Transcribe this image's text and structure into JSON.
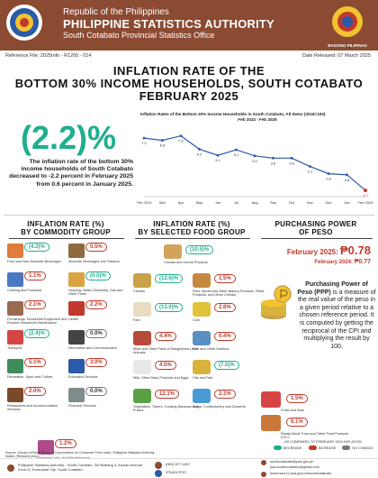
{
  "header": {
    "republic": "Republic of the Philippines",
    "agency": "PHILIPPINE STATISTICS AUTHORITY",
    "office": "South Cotabato Provincial Statistics Office",
    "bp_logo_text": "BAGONG PILIPINAS"
  },
  "reference": {
    "ref": "Reference File: 2025Info - R1265 - 014",
    "released": "Date Released:   07 March 2025"
  },
  "title": {
    "line1": "INFLATION RATE OF THE",
    "line2": "BOTTOM 30% INCOME HOUSEHOLDS, SOUTH COTABATO",
    "line3": "FEBRUARY 2025"
  },
  "headline": {
    "value": "(2.2)%",
    "description": "The inflation rate of the bottom 30% income households of South Cotabato decreased to -2.2 percent in February 2025 from 0.6 percent in January 2025."
  },
  "chart_data": {
    "type": "line",
    "title": "Inflation Rates of the Bottom 30% Income Households in South Cotabato, All Items (2018=100)",
    "subtitle": "Feb 2024 - Feb 2025",
    "categories": [
      "Feb 2024",
      "Mar",
      "Apr",
      "May",
      "Jun",
      "Jul",
      "Aug",
      "Sep",
      "Oct",
      "Nov",
      "Dec",
      "Jan",
      "Feb 2025"
    ],
    "x_tick_labels": [
      "Feb 2024",
      "Mar",
      "Apr",
      "May",
      "Jun",
      "Jul",
      "Aug",
      "Sep",
      "Oct",
      "Nov",
      "Dec",
      "Jan",
      "Feb 2025"
    ],
    "values": [
      7.2,
      6.8,
      7.6,
      5.2,
      4.1,
      5.1,
      4.0,
      3.6,
      3.6,
      2.1,
      0.8,
      0.6,
      -2.2
    ],
    "value_labels": [
      "7.2",
      "6.8",
      "7.6",
      "5.2",
      "4.1",
      "5.1",
      "4.0",
      "3.6",
      "3.6",
      "2.1",
      "0.8",
      "0.6",
      "-2.2"
    ],
    "ylim": [
      -3,
      9
    ],
    "line_color": "#2a5aa8",
    "highlight_color": "#c0392b"
  },
  "commodity": {
    "title_line1": "INFLATION RATE (%)",
    "title_line2": "BY COMMODITY GROUP",
    "items": [
      {
        "value": "(4.3)%",
        "label": "Food and Non-Alcoholic Beverages",
        "trend": "dec",
        "icon": "food-icon",
        "color": "#e07b39"
      },
      {
        "value": "0.5%",
        "label": "Alcoholic Beverages and Tobacco",
        "trend": "inc",
        "icon": "bottle-icon",
        "color": "#8e6b3e"
      },
      {
        "value": "1.1%",
        "label": "Clothing and Footwear",
        "trend": "inc",
        "icon": "shirt-icon",
        "color": "#4a78c2"
      },
      {
        "value": "(0.5)%",
        "label": "Housing, Water, Electricity, Gas and Other Fuels",
        "trend": "dec",
        "icon": "house-icon",
        "color": "#d9a441"
      },
      {
        "value": "2.1%",
        "label": "Furnishings, Household Equipment and Routine Household Maintenance",
        "trend": "inc",
        "icon": "sofa-icon",
        "color": "#9a6a4f"
      },
      {
        "value": "2.2%",
        "label": "Health",
        "trend": "inc",
        "icon": "health-icon",
        "color": "#c0392b"
      },
      {
        "value": "(2.4)%",
        "label": "Transport",
        "trend": "dec",
        "icon": "car-icon",
        "color": "#d64545"
      },
      {
        "value": "0.0%",
        "label": "Information and Communication",
        "trend": "nc",
        "icon": "phone-icon",
        "color": "#444444"
      },
      {
        "value": "5.1%",
        "label": "Recreation, Sport and Culture",
        "trend": "inc",
        "icon": "sport-icon",
        "color": "#3d8d5a"
      },
      {
        "value": "3.0%",
        "label": "Education Services",
        "trend": "inc",
        "icon": "education-icon",
        "color": "#2a5aa8"
      },
      {
        "value": "2.0%",
        "label": "Restaurants and Accommodation Services",
        "trend": "inc",
        "icon": "restaurant-icon",
        "color": "#7a4a2b"
      },
      {
        "value": "0.0%",
        "label": "Financial Services",
        "trend": "nc",
        "icon": "bank-icon",
        "color": "#7f8c8d"
      },
      {
        "value": "1.2%",
        "label": "Personal Care, and Miscellaneous Goods and Services",
        "trend": "inc",
        "icon": "salon-icon",
        "color": "#b04a8a"
      }
    ]
  },
  "food": {
    "title_line1": "INFLATION RATE (%)",
    "title_line2": "BY SELECTED FOOD GROUP",
    "items": [
      {
        "value": "(10.5)%",
        "label": "Cereals and Cereal Products",
        "trend": "dec",
        "icon": "cereal-icon",
        "color": "#d4a35a"
      },
      {
        "value": "(12.6)%",
        "label": "Cereals",
        "trend": "dec",
        "icon": "grain-icon",
        "color": "#c9a24a"
      },
      {
        "value": "1.5%",
        "label": "Flour, Bread and Other Bakery Products, Pasta Products, and Other Cereals",
        "trend": "inc",
        "icon": "bread-icon",
        "color": "#c58a3e"
      },
      {
        "value": "(13.0)%",
        "label": "Rice",
        "trend": "dec",
        "icon": "rice-icon",
        "color": "#e9dcc3"
      },
      {
        "value": "2.8%",
        "label": "Corn",
        "trend": "inc",
        "icon": "corn-icon",
        "color": "#e2c23b"
      },
      {
        "value": "4.4%",
        "label": "Meat and Other Parts of Slaughtered Land Animals",
        "trend": "inc",
        "icon": "meat-icon",
        "color": "#b84a3a"
      },
      {
        "value": "0.4%",
        "label": "Fish and Other Seafood",
        "trend": "inc",
        "icon": "fish-icon",
        "color": "#5a8fc2"
      },
      {
        "value": "4.5%",
        "label": "Milk, Other Dairy Products and Eggs",
        "trend": "inc",
        "icon": "milk-icon",
        "color": "#e8e8e8"
      },
      {
        "value": "(7.5)%",
        "label": "Oils and Fats",
        "trend": "dec",
        "icon": "oil-icon",
        "color": "#d9b23b"
      },
      {
        "value": "12.1%",
        "label": "Vegetables, Tubers, Cooking Bananas and Pulses",
        "trend": "inc",
        "icon": "vegetable-icon",
        "color": "#5aa145"
      },
      {
        "value": "2.1%",
        "label": "Sugar, Confectionery and Desserts",
        "trend": "inc",
        "icon": "sugar-icon",
        "color": "#4a9ad4"
      }
    ]
  },
  "ppp": {
    "title_line1": "PURCHASING POWER",
    "title_line2": "OF PESO",
    "feb2025_label": "February 2025:",
    "feb2025_value": "₱0.78",
    "feb2024_label": "February 2024:",
    "feb2024_value": "₱0.77",
    "description_bold": "Purchasing Power of Peso (PPP)",
    "description": " is a measure of the real value of the peso in a given period relative to a chosen reference period. It is computed by getting the reciprocal of the CPI and multiplying the result by 100.",
    "food_items": [
      {
        "value": "1.5%",
        "label": "Fruits and Nuts",
        "trend": "inc",
        "icon": "fruit-icon",
        "color": "#d64545"
      },
      {
        "value": "6.1%",
        "label": "Ready-Made Food and Other Food Products N.E.C.",
        "trend": "inc",
        "icon": "ready-food-icon",
        "color": "#c9783a"
      }
    ]
  },
  "legend": {
    "caption": "AS COMPARED TO FEBRUARY 2024 INFLATION",
    "decrease": "DECREASE",
    "increase": "INCREASE",
    "no_change": "NO CHANGE",
    "decrease_color": "#1fae8f",
    "increase_color": "#c0392b",
    "no_change_color": "#777777"
  },
  "source": "Source: Survey of Retail Prices of Commodities for Consumer Price Index, Philippine Statistics Authority",
  "source_note": "Notes: (Rebased year)",
  "footer": {
    "address": "Philippine Statistics Authority - South Cotabato, 3rd Building 4, Alunan Avenue, Zone III, Koronadal City, South Cotabato",
    "phone": "(083) 877-1807",
    "social": "/PSASCPSO",
    "email": "southcotabato@psa.gov.ph",
    "email2": "psa.southcotabato@gmail.com",
    "website": "www.rsso12.psa.gov.ph/southcotabato"
  }
}
